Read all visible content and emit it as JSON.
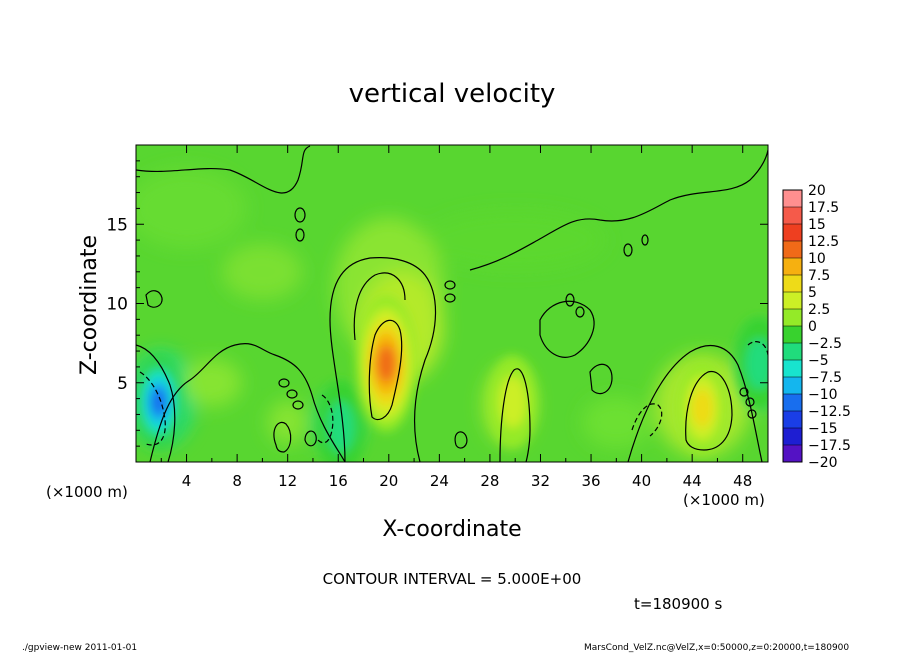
{
  "chart_data": {
    "type": "heatmap",
    "title": "vertical velocity",
    "xlabel": "X-coordinate",
    "ylabel": "Z-coordinate",
    "x_unit": "(×1000 m)",
    "y_unit": "(×1000 m)",
    "xlim": [
      0,
      50
    ],
    "ylim": [
      0,
      20
    ],
    "x_ticks": [
      4,
      8,
      12,
      16,
      20,
      24,
      28,
      32,
      36,
      40,
      44,
      48
    ],
    "y_ticks": [
      5,
      10,
      15
    ],
    "colorbar": {
      "levels": [
        "20",
        "17.5",
        "15",
        "12.5",
        "10",
        "7.5",
        "5",
        "2.5",
        "0",
        "−2.5",
        "−5",
        "−7.5",
        "−10",
        "−12.5",
        "−15",
        "−17.5",
        "−20"
      ],
      "colors": [
        "#ff8f8f",
        "#f55a4a",
        "#ee3f20",
        "#f06a18",
        "#f6b010",
        "#eedb18",
        "#ccef26",
        "#94ea28",
        "#38d22e",
        "#20dc7c",
        "#18e4ce",
        "#14b6ee",
        "#186eee",
        "#1a3ee6",
        "#1e1ed2",
        "#5412c4"
      ]
    },
    "features": [
      {
        "name": "updraft",
        "x": 19.8,
        "z": 6.2,
        "w": 13.5
      },
      {
        "name": "updraft",
        "x": 44.8,
        "z": 3.4,
        "w": 8.0
      },
      {
        "name": "updraft",
        "x": 29.8,
        "z": 3.8,
        "w": 5.0
      },
      {
        "name": "downdraft",
        "x": 1.8,
        "z": 3.8,
        "w": -13.5
      },
      {
        "name": "downdraft",
        "x": 16.2,
        "z": 2.2,
        "w": -6.0
      },
      {
        "name": "downdraft",
        "x": 49.3,
        "z": 6.2,
        "w": -6.0
      }
    ]
  },
  "annotations": {
    "contour_interval": "CONTOUR INTERVAL = 5.000E+00",
    "time": "t=180900  s",
    "footer_left": "./gpview-new   2011-01-01",
    "footer_right": "MarsCond_VelZ.nc@VelZ,x=0:50000,z=0:20000,t=180900"
  }
}
